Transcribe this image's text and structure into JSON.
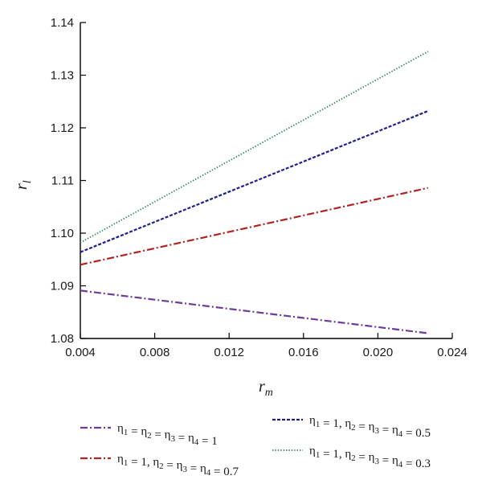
{
  "chart_data": {
    "type": "line",
    "title": "",
    "xlabel": {
      "base": "r",
      "sub": "m"
    },
    "ylabel": {
      "base": "r",
      "sub": "l"
    },
    "xlim": [
      0.004,
      0.024
    ],
    "ylim": [
      1.08,
      1.14
    ],
    "x_ticks": [
      "0.004",
      "0.008",
      "0.012",
      "0.016",
      "0.020",
      "0.024"
    ],
    "y_ticks": [
      "1.08",
      "1.09",
      "1.10",
      "1.11",
      "1.12",
      "1.13",
      "1.14"
    ],
    "grid": false,
    "legend_position": "bottom",
    "series": [
      {
        "name": "η1 = η2 = η3 = η4 = 1",
        "legend": [
          {
            "t": "η",
            "sub": "1"
          },
          {
            "t": " = η",
            "sub": "2"
          },
          {
            "t": " = η",
            "sub": "3"
          },
          {
            "t": " = η",
            "sub": "4"
          },
          {
            "t": " = 1"
          }
        ],
        "color": "#6a3d9a",
        "style": "dashdot",
        "x": [
          0.004,
          0.0227
        ],
        "y": [
          1.0891,
          1.081
        ]
      },
      {
        "name": "η1 = 1, η2 = η3 = η4 = 0.5",
        "legend": [
          {
            "t": "η",
            "sub": "1"
          },
          {
            "t": " = 1, η",
            "sub": "2"
          },
          {
            "t": " = η",
            "sub": "3"
          },
          {
            "t": " = η",
            "sub": "4"
          },
          {
            "t": " = 0.5"
          }
        ],
        "color": "#1f1f8f",
        "style": "dashed",
        "x": [
          0.004,
          0.0227
        ],
        "y": [
          1.0964,
          1.1232
        ]
      },
      {
        "name": "η1 = 1, η2 = η3 = η4 = 0.7",
        "legend": [
          {
            "t": "η",
            "sub": "1"
          },
          {
            "t": " = 1, η",
            "sub": "2"
          },
          {
            "t": " = η",
            "sub": "3"
          },
          {
            "t": " = η",
            "sub": "4"
          },
          {
            "t": " = 0.7"
          }
        ],
        "color": "#b22222",
        "style": "dashdot",
        "x": [
          0.004,
          0.0227
        ],
        "y": [
          1.094,
          1.1086
        ]
      },
      {
        "name": "η1 = 1, η2 = η3 = η4 = 0.3",
        "legend": [
          {
            "t": "η",
            "sub": "1"
          },
          {
            "t": " = 1, η",
            "sub": "2"
          },
          {
            "t": " = η",
            "sub": "3"
          },
          {
            "t": " = η",
            "sub": "4"
          },
          {
            "t": " = 0.3"
          }
        ],
        "color": "#2e8b57",
        "style": "dotted",
        "x": [
          0.004,
          0.0227
        ],
        "y": [
          1.0982,
          1.1345
        ]
      }
    ]
  }
}
